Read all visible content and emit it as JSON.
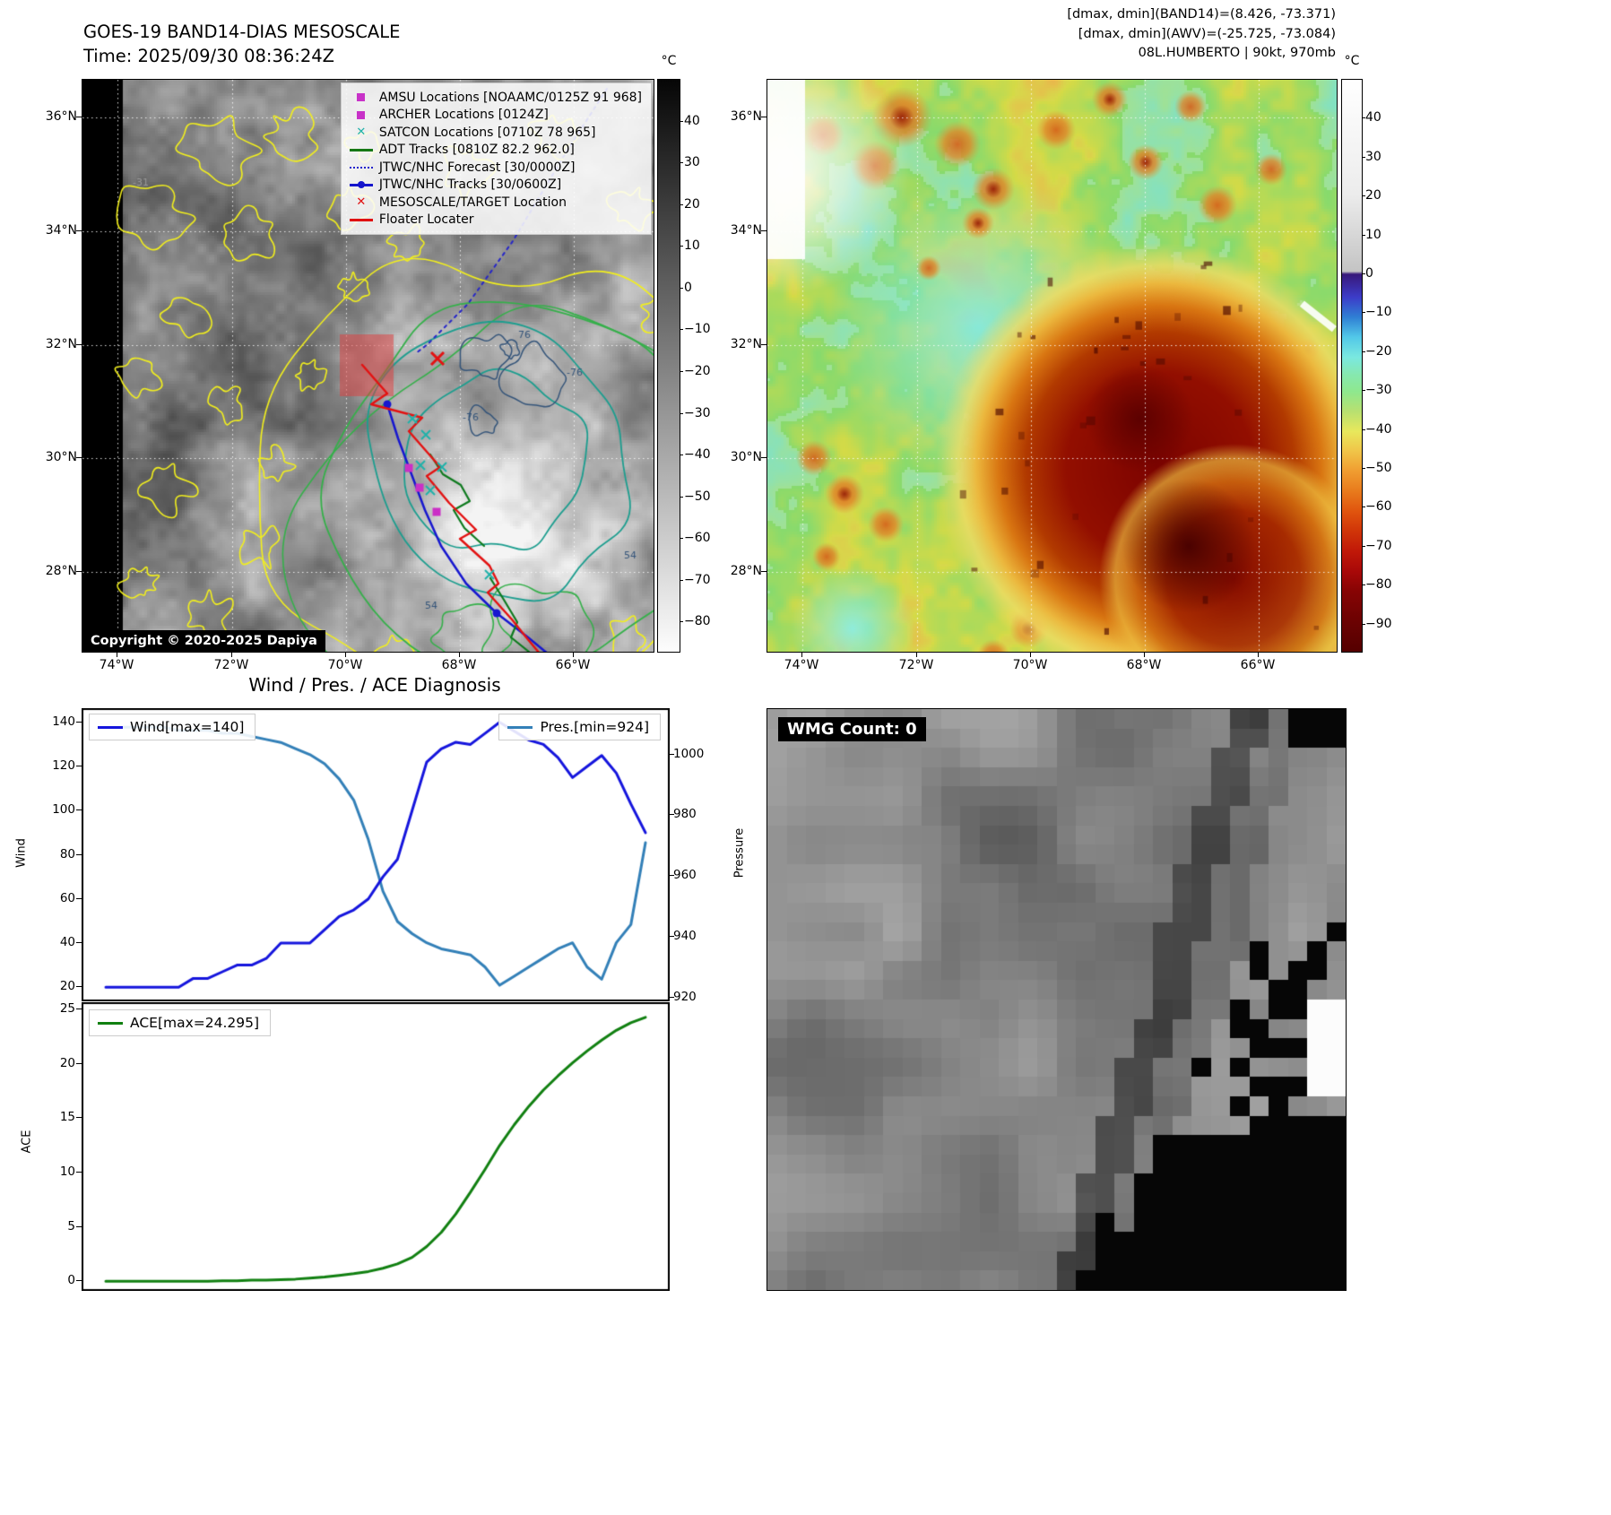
{
  "left_panel": {
    "title": "GOES-19 BAND14-DIAS MESOSCALE",
    "time": "Time: 2025/09/30 08:36:24Z",
    "copyright": "Copyright © 2020-2025 Dapiya",
    "colorbar_unit": "°C",
    "colorbar_ticks": [
      40,
      30,
      20,
      10,
      0,
      -10,
      -20,
      -30,
      -40,
      -50,
      -60,
      -70,
      -80
    ],
    "lat_ticks": [
      "36°N",
      "34°N",
      "32°N",
      "30°N",
      "28°N"
    ],
    "lon_ticks": [
      "74°W",
      "72°W",
      "70°W",
      "68°W",
      "66°W"
    ],
    "legend": [
      {
        "marker": "square",
        "color": "#c832c8",
        "label": "AMSU Locations [NOAAMC/0125Z 91 968]"
      },
      {
        "marker": "square",
        "color": "#c832c8",
        "label": "ARCHER Locations [0124Z]"
      },
      {
        "marker": "x",
        "color": "#20b2aa",
        "label": "SATCON Locations [0710Z 78 965]"
      },
      {
        "marker": "line",
        "color": "#157815",
        "label": "ADT Tracks [0810Z 82.2 962.0]"
      },
      {
        "marker": "dotted-line",
        "color": "#2222cc",
        "label": "JTWC/NHC Forecast [30/0000Z]"
      },
      {
        "marker": "line-dot",
        "color": "#1515cc",
        "label": "JTWC/NHC Tracks [30/0600Z]"
      },
      {
        "marker": "x",
        "color": "#e01010",
        "label": "MESOSCALE/TARGET Location"
      },
      {
        "marker": "line",
        "color": "#e01010",
        "label": "Floater Locater"
      }
    ],
    "contour_labels": [
      "-31",
      "76",
      "-76",
      "-76",
      "54",
      "54"
    ]
  },
  "right_panel": {
    "info_lines": [
      "[dmax, dmin](BAND14)=(8.426, -73.371)",
      "[dmax, dmin](AWV)=(-25.725, -73.084)",
      "08L.HUMBERTO | 90kt, 970mb"
    ],
    "colorbar_unit": "°C",
    "colorbar_ticks": [
      40,
      30,
      20,
      10,
      0,
      -10,
      -20,
      -30,
      -40,
      -50,
      -60,
      -70,
      -80,
      -90
    ],
    "lat_ticks": [
      "36°N",
      "34°N",
      "32°N",
      "30°N",
      "28°N"
    ],
    "lon_ticks": [
      "74°W",
      "72°W",
      "70°W",
      "68°W",
      "66°W"
    ]
  },
  "wmg_panel": {
    "label": "WMG Count: 0"
  },
  "chart_data": [
    {
      "type": "line",
      "title": "Wind / Pres. / ACE Diagnosis",
      "left_ylabel": "Wind",
      "right_ylabel": "Pressure",
      "left_ylim": [
        14,
        146
      ],
      "right_ylim": [
        919,
        1015
      ],
      "left_ticks": [
        20,
        40,
        60,
        80,
        100,
        120,
        140
      ],
      "right_ticks": [
        920,
        940,
        960,
        980,
        1000
      ],
      "series": [
        {
          "name": "Wind[max=140]",
          "axis": "left",
          "color": "#1515dd",
          "values": [
            20,
            20,
            20,
            20,
            20,
            20,
            24,
            24,
            27,
            30,
            30,
            33,
            40,
            40,
            40,
            46,
            52,
            55,
            60,
            70,
            78,
            100,
            122,
            128,
            131,
            130,
            135,
            140,
            136,
            132,
            130,
            124,
            115,
            120,
            125,
            117,
            103,
            90
          ]
        },
        {
          "name": "Pres.[min=924]",
          "axis": "right",
          "color": "#3380b8",
          "values": [
            1009,
            1009,
            1009,
            1009,
            1009,
            1008,
            1008,
            1008,
            1007,
            1007,
            1006,
            1005,
            1004,
            1002,
            1000,
            997,
            992,
            985,
            972,
            955,
            945,
            941,
            938,
            936,
            935,
            934,
            930,
            924,
            927,
            930,
            933,
            936,
            938,
            930,
            926,
            938,
            944,
            971
          ]
        }
      ]
    },
    {
      "type": "line",
      "ylabel": "ACE",
      "ylim": [
        -0.8,
        25.6
      ],
      "yticks": [
        0,
        5,
        10,
        15,
        20,
        25
      ],
      "series": [
        {
          "name": "ACE[max=24.295]",
          "color": "#118011",
          "values": [
            0,
            0,
            0,
            0,
            0,
            0,
            0,
            0,
            0.05,
            0.05,
            0.1,
            0.1,
            0.15,
            0.2,
            0.3,
            0.4,
            0.55,
            0.7,
            0.9,
            1.2,
            1.6,
            2.2,
            3.2,
            4.5,
            6.2,
            8.2,
            10.3,
            12.5,
            14.4,
            16.1,
            17.6,
            18.9,
            20.1,
            21.2,
            22.2,
            23.1,
            23.8,
            24.295
          ]
        }
      ]
    }
  ]
}
